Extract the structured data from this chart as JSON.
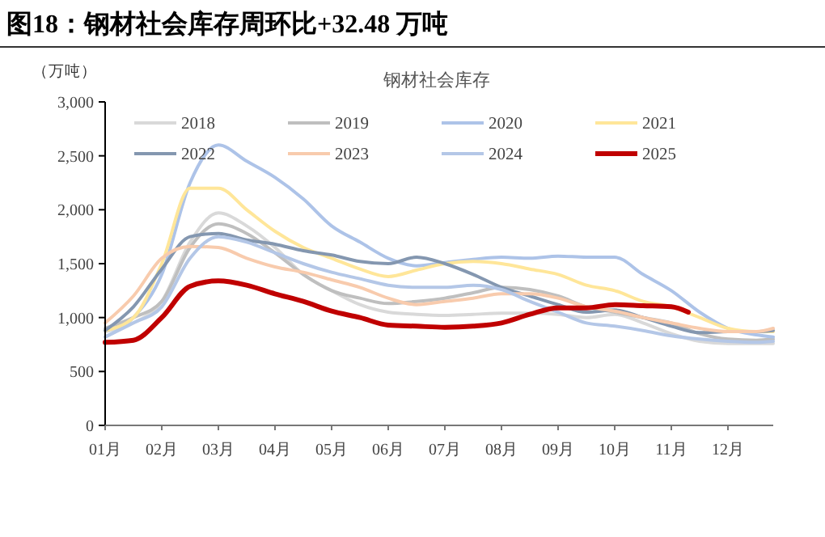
{
  "chart_data": {
    "type": "line",
    "title": "图18：钢材社会库存周环比+32.48 万吨",
    "subtitle": "钢材社会库存",
    "ylabel": "（万吨）",
    "x": [
      1,
      1.5,
      2,
      2.5,
      3,
      3.5,
      4,
      4.5,
      5,
      5.5,
      6,
      6.5,
      7,
      7.5,
      8,
      8.5,
      9,
      9.5,
      10,
      10.5,
      11,
      11.5,
      12,
      12.5,
      12.8
    ],
    "xlim": [
      1,
      12.8
    ],
    "xticks": [
      {
        "value": 1,
        "label": "01月"
      },
      {
        "value": 2,
        "label": "02月"
      },
      {
        "value": 3,
        "label": "03月"
      },
      {
        "value": 4,
        "label": "04月"
      },
      {
        "value": 5,
        "label": "05月"
      },
      {
        "value": 6,
        "label": "06月"
      },
      {
        "value": 7,
        "label": "07月"
      },
      {
        "value": 8,
        "label": "08月"
      },
      {
        "value": 9,
        "label": "09月"
      },
      {
        "value": 10,
        "label": "10月"
      },
      {
        "value": 11,
        "label": "11月"
      },
      {
        "value": 12,
        "label": "12月"
      }
    ],
    "ylim": [
      0,
      3000
    ],
    "yticks": [
      {
        "value": 0,
        "label": "0"
      },
      {
        "value": 500,
        "label": "500"
      },
      {
        "value": 1000,
        "label": "1,000"
      },
      {
        "value": 1500,
        "label": "1,500"
      },
      {
        "value": 2000,
        "label": "2,000"
      },
      {
        "value": 2500,
        "label": "2,500"
      },
      {
        "value": 3000,
        "label": "3,000"
      }
    ],
    "grid": false,
    "legend": "top",
    "marker": "none",
    "line_style": "solid",
    "series": [
      {
        "name": "2018",
        "color": "#d9d9d9",
        "values": [
          870,
          950,
          1150,
          1700,
          1970,
          1850,
          1650,
          1400,
          1250,
          1120,
          1050,
          1030,
          1020,
          1030,
          1040,
          1040,
          1030,
          1000,
          1030,
          950,
          850,
          780,
          760,
          760,
          760
        ]
      },
      {
        "name": "2019",
        "color": "#bfbfbf",
        "values": [
          900,
          1000,
          1150,
          1650,
          1870,
          1780,
          1600,
          1400,
          1250,
          1180,
          1130,
          1150,
          1180,
          1230,
          1280,
          1260,
          1200,
          1100,
          1050,
          1000,
          950,
          850,
          800,
          790,
          800
        ]
      },
      {
        "name": "2020",
        "color": "#adc3e8",
        "values": [
          820,
          1000,
          1400,
          2250,
          2600,
          2450,
          2300,
          2100,
          1850,
          1700,
          1550,
          1480,
          1510,
          1540,
          1560,
          1550,
          1570,
          1560,
          1560,
          1400,
          1250,
          1050,
          900,
          840,
          820
        ]
      },
      {
        "name": "2021",
        "color": "#ffe699",
        "values": [
          880,
          1000,
          1500,
          2200,
          2200,
          2000,
          1800,
          1650,
          1550,
          1450,
          1380,
          1440,
          1500,
          1520,
          1500,
          1450,
          1400,
          1300,
          1250,
          1150,
          1100,
          1000,
          900,
          870,
          870
        ]
      },
      {
        "name": "2022",
        "color": "#8497b0",
        "values": [
          880,
          1100,
          1450,
          1750,
          1780,
          1720,
          1680,
          1620,
          1580,
          1520,
          1500,
          1560,
          1500,
          1400,
          1280,
          1200,
          1120,
          1050,
          1070,
          1000,
          920,
          860,
          870,
          870,
          880
        ]
      },
      {
        "name": "2023",
        "color": "#f8cbad",
        "values": [
          950,
          1200,
          1550,
          1660,
          1650,
          1550,
          1470,
          1420,
          1350,
          1280,
          1180,
          1120,
          1150,
          1180,
          1220,
          1220,
          1180,
          1100,
          1060,
          1000,
          950,
          900,
          870,
          870,
          900
        ]
      },
      {
        "name": "2024",
        "color": "#b4c7e7",
        "values": [
          820,
          950,
          1100,
          1550,
          1750,
          1700,
          1600,
          1500,
          1420,
          1360,
          1300,
          1280,
          1280,
          1300,
          1260,
          1150,
          1050,
          950,
          920,
          880,
          830,
          800,
          780,
          770,
          780
        ]
      },
      {
        "name": "2025",
        "color": "#c00000",
        "x": [
          1,
          1.5,
          2,
          2.5,
          3,
          3.5,
          4,
          4.5,
          5,
          5.5,
          6,
          6.5,
          7,
          7.5,
          8,
          8.5,
          9,
          9.5,
          10,
          10.5,
          11,
          11.3
        ],
        "values": [
          770,
          790,
          1000,
          1290,
          1340,
          1300,
          1220,
          1150,
          1060,
          1000,
          930,
          920,
          910,
          920,
          950,
          1030,
          1090,
          1090,
          1120,
          1110,
          1100,
          1050
        ]
      }
    ]
  }
}
